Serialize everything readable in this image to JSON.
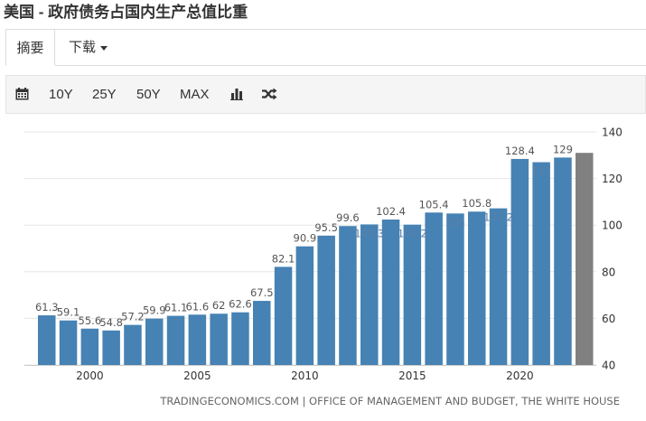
{
  "page": {
    "title": "美国 - 政府债务占国内生产总值比重"
  },
  "tabs": [
    {
      "label": "摘要",
      "active": true
    },
    {
      "label": "下载",
      "dropdown": true
    }
  ],
  "toolbar": {
    "calendar_icon": "calendar-icon",
    "ranges": [
      "10Y",
      "25Y",
      "50Y",
      "MAX"
    ],
    "bar_chart_icon": "bar-chart-icon",
    "shuffle_icon": "shuffle-icon"
  },
  "colors": {
    "bar": "#4682b4",
    "forecast_bar": "#808080",
    "text": "#333333"
  },
  "chart_data": {
    "type": "bar",
    "title": "",
    "xlabel": "",
    "ylabel": "",
    "source": "TRADINGECONOMICS.COM | OFFICE OF MANAGEMENT AND BUDGET, THE WHITE HOUSE",
    "categories": [
      1998,
      1999,
      2000,
      2001,
      2002,
      2003,
      2004,
      2005,
      2006,
      2007,
      2008,
      2009,
      2010,
      2011,
      2012,
      2013,
      2014,
      2015,
      2016,
      2017,
      2018,
      2019,
      2020,
      2021,
      2022,
      2023
    ],
    "values": [
      61.3,
      59.1,
      55.6,
      54.8,
      57.2,
      59.9,
      61.1,
      61.6,
      62,
      62.6,
      67.5,
      82.1,
      90.9,
      95.5,
      99.6,
      100.3,
      102.4,
      100.2,
      105.4,
      105,
      105.8,
      107.2,
      128.4,
      127,
      129,
      131
    ],
    "labels": [
      "61.3",
      "59.1",
      "55.6",
      "54.8",
      "57.2",
      "59.9",
      "61.1",
      "61.6",
      "62",
      "62.6",
      "67.5",
      "82.1",
      "90.9",
      "95.5",
      "99.6",
      "100.3",
      "102.4",
      "100.2",
      "105.4",
      "105",
      "105.8",
      "107.2",
      "128.4",
      "127",
      "129",
      ""
    ],
    "label_style": [
      "above",
      "above",
      "above",
      "above",
      "above",
      "above",
      "above",
      "above",
      "above",
      "above",
      "above",
      "above",
      "above",
      "above",
      "above",
      "inside",
      "above",
      "inside",
      "above",
      "inside",
      "above",
      "inside",
      "above",
      "inside",
      "above",
      "none"
    ],
    "forecast": [
      false,
      false,
      false,
      false,
      false,
      false,
      false,
      false,
      false,
      false,
      false,
      false,
      false,
      false,
      false,
      false,
      false,
      false,
      false,
      false,
      false,
      false,
      false,
      false,
      false,
      true
    ],
    "x_ticks": [
      "2000",
      "2005",
      "2010",
      "2015",
      "2020"
    ],
    "y_ticks": [
      40,
      60,
      80,
      100,
      120,
      140
    ],
    "ylim": [
      40,
      140
    ],
    "y_axis_side": "right",
    "grid": true
  }
}
